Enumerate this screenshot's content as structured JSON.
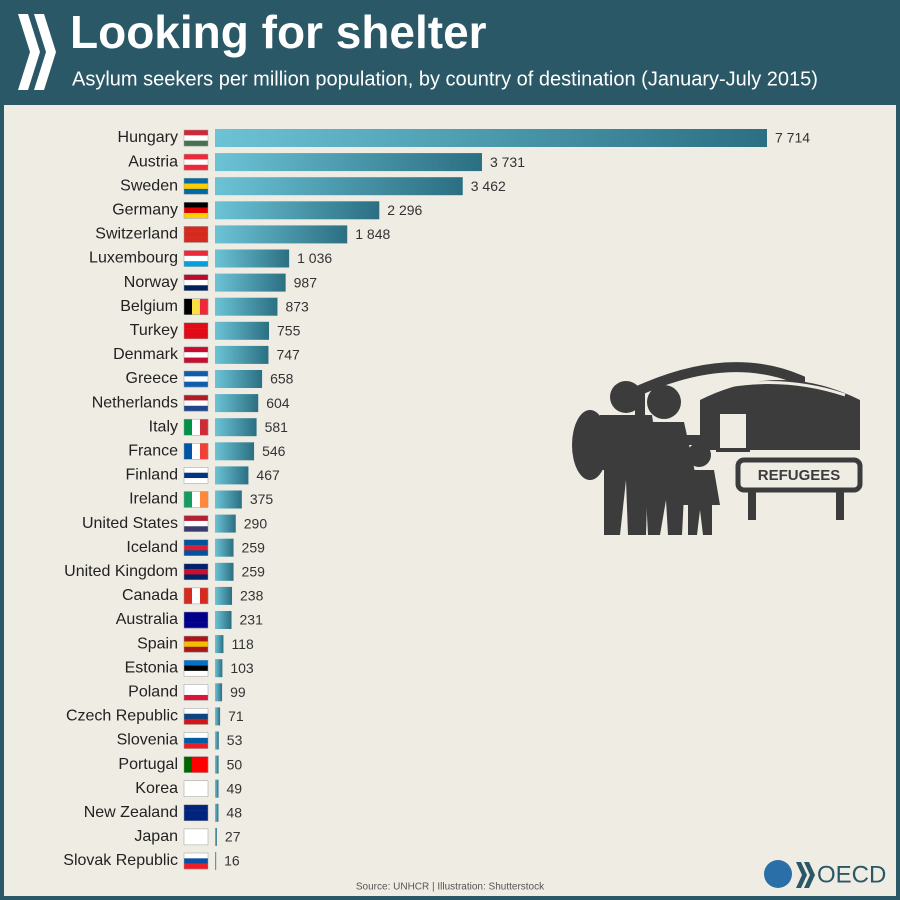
{
  "chart_data": {
    "type": "bar",
    "orientation": "horizontal",
    "title": "Looking for shelter",
    "subtitle": "Asylum seekers per million population, by country of destination (January-July 2015)",
    "categories": [
      "Hungary",
      "Austria",
      "Sweden",
      "Germany",
      "Switzerland",
      "Luxembourg",
      "Norway",
      "Belgium",
      "Turkey",
      "Denmark",
      "Greece",
      "Netherlands",
      "Italy",
      "France",
      "Finland",
      "Ireland",
      "United States",
      "Iceland",
      "United Kingdom",
      "Canada",
      "Australia",
      "Spain",
      "Estonia",
      "Poland",
      "Czech Republic",
      "Slovenia",
      "Portugal",
      "Korea",
      "New Zealand",
      "Japan",
      "Slovak Republic"
    ],
    "values": [
      7714,
      3731,
      3462,
      2296,
      1848,
      1036,
      987,
      873,
      755,
      747,
      658,
      604,
      581,
      546,
      467,
      375,
      290,
      259,
      259,
      238,
      231,
      118,
      103,
      99,
      71,
      53,
      50,
      49,
      48,
      27,
      16
    ],
    "value_labels": [
      "7 714",
      "3 731",
      "3 462",
      "2 296",
      "1 848",
      "1 036",
      "987",
      "873",
      "755",
      "747",
      "658",
      "604",
      "581",
      "546",
      "467",
      "375",
      "290",
      "259",
      "259",
      "238",
      "231",
      "118",
      "103",
      "99",
      "71",
      "53",
      "50",
      "49",
      "48",
      "27",
      "16"
    ],
    "color": [
      "#6cc3d6",
      "#2b6f82"
    ],
    "source": "Source: UNHCR | Illustration: Shutterstock",
    "illustration_sign": "REFUGEES",
    "logo": "OECD"
  }
}
